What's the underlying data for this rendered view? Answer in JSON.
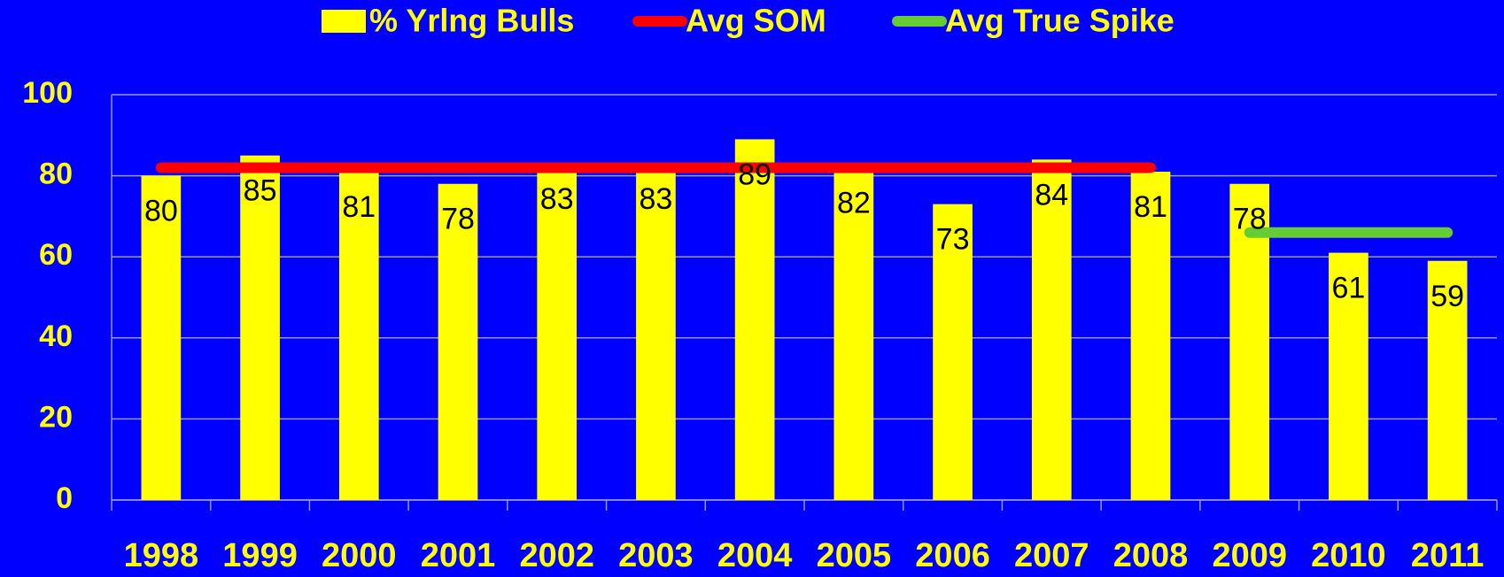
{
  "chart_data": {
    "type": "bar",
    "categories": [
      "1998",
      "1999",
      "2000",
      "2001",
      "2002",
      "2003",
      "2004",
      "2005",
      "2006",
      "2007",
      "2008",
      "2009",
      "2010",
      "2011"
    ],
    "series": [
      {
        "name": "% Yrlng Bulls",
        "type": "bar",
        "color": "#ffff00",
        "values": [
          80,
          85,
          81,
          78,
          83,
          83,
          89,
          82,
          73,
          84,
          81,
          78,
          61,
          59
        ]
      },
      {
        "name": "Avg SOM",
        "type": "line",
        "color": "#ff0000",
        "values": [
          82,
          82,
          82,
          82,
          82,
          82,
          82,
          82,
          82,
          82,
          82,
          null,
          null,
          null
        ]
      },
      {
        "name": "Avg True Spike",
        "type": "line",
        "color": "#66cc33",
        "values": [
          null,
          null,
          null,
          null,
          null,
          null,
          null,
          null,
          null,
          null,
          null,
          66,
          66,
          66
        ]
      }
    ],
    "ylim": [
      0,
      100
    ],
    "yticks": [
      0,
      20,
      40,
      60,
      80,
      100
    ],
    "grid": true,
    "legend": "top"
  }
}
